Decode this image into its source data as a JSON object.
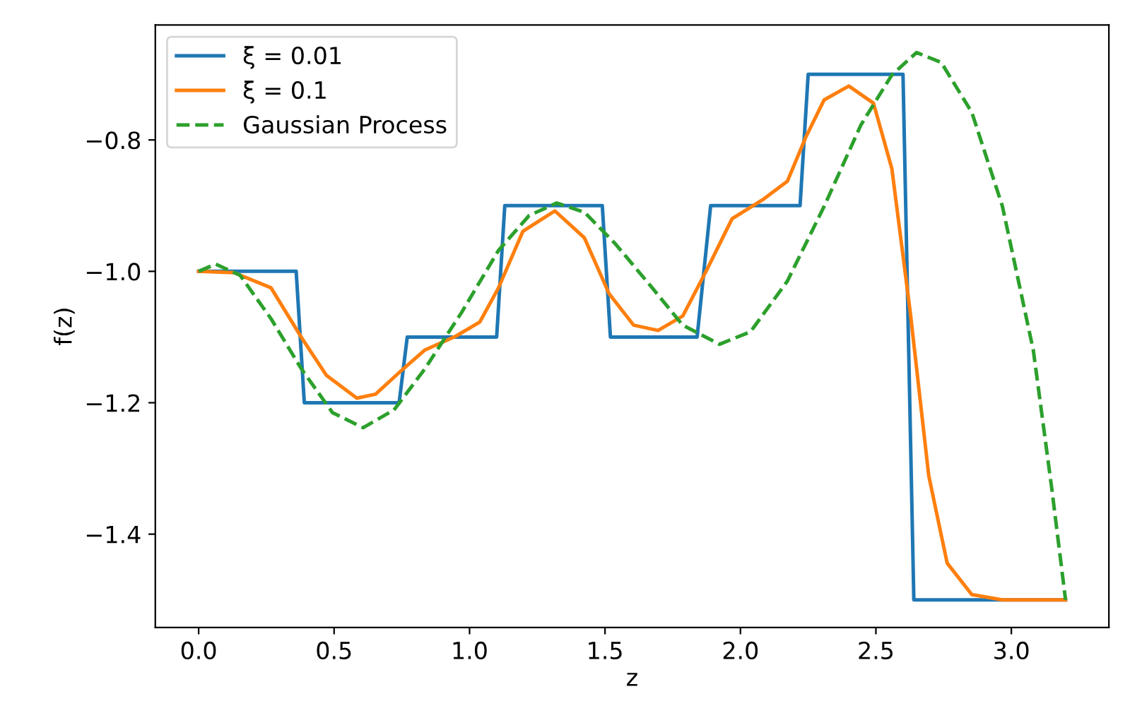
{
  "chart_data": {
    "type": "line",
    "xlabel": "z",
    "ylabel": "f(z)",
    "xlim": [
      -0.16,
      3.36
    ],
    "xticks": [
      {
        "value": 0.0,
        "label": "0.0"
      },
      {
        "value": 0.5,
        "label": "0.5"
      },
      {
        "value": 1.0,
        "label": "1.0"
      },
      {
        "value": 1.5,
        "label": "1.5"
      },
      {
        "value": 2.0,
        "label": "2.0"
      },
      {
        "value": 2.5,
        "label": "2.5"
      },
      {
        "value": 3.0,
        "label": "3.0"
      }
    ],
    "ylim": [
      -1.542,
      -0.625
    ],
    "yticks": [
      {
        "value": -1.4,
        "label": "−1.4"
      },
      {
        "value": -1.2,
        "label": "−1.2"
      },
      {
        "value": -1.0,
        "label": "−1.0"
      },
      {
        "value": -0.8,
        "label": "−0.8"
      }
    ],
    "grid": false,
    "legend": "top left",
    "series": [
      {
        "name": "ξ = 0.01",
        "color": "#1f77b4",
        "line_style": "solid",
        "x": [
          0,
          0.36,
          0.39,
          0.74,
          0.77,
          1.1,
          1.13,
          1.49,
          1.52,
          1.84,
          1.89,
          2.22,
          2.25,
          2.6,
          2.64,
          3.2
        ],
        "values": [
          -1.0,
          -1.0,
          -1.2,
          -1.2,
          -1.1,
          -1.1,
          -0.9,
          -0.9,
          -1.1,
          -1.1,
          -0.9,
          -0.9,
          -0.7,
          -0.7,
          -1.5,
          -1.5
        ]
      },
      {
        "name": "ξ = 0.1",
        "color": "#ff7f0e",
        "line_style": "solid",
        "x": [
          0,
          0.131,
          0.267,
          0.38,
          0.471,
          0.584,
          0.653,
          0.743,
          0.834,
          0.948,
          1.038,
          1.107,
          1.197,
          1.315,
          1.424,
          1.515,
          1.606,
          1.696,
          1.787,
          1.878,
          1.969,
          2.082,
          2.173,
          2.241,
          2.309,
          2.4,
          2.491,
          2.559,
          2.627,
          2.695,
          2.763,
          2.854,
          2.967,
          3.2
        ],
        "values": [
          -1.0,
          -1.002,
          -1.025,
          -1.101,
          -1.158,
          -1.193,
          -1.187,
          -1.153,
          -1.12,
          -1.099,
          -1.077,
          -1.025,
          -0.939,
          -0.908,
          -0.949,
          -1.034,
          -1.082,
          -1.09,
          -1.068,
          -0.996,
          -0.92,
          -0.891,
          -0.863,
          -0.796,
          -0.739,
          -0.718,
          -0.744,
          -0.844,
          -1.063,
          -1.311,
          -1.444,
          -1.492,
          -1.5,
          -1.5
        ]
      },
      {
        "name": "Gaussian Process",
        "color": "#2ca02c",
        "line_style": "dashed",
        "x": [
          0,
          0.063,
          0.153,
          0.267,
          0.38,
          0.494,
          0.607,
          0.721,
          0.834,
          0.97,
          1.107,
          1.22,
          1.322,
          1.424,
          1.538,
          1.674,
          1.787,
          1.923,
          2.037,
          2.173,
          2.309,
          2.445,
          2.559,
          2.65,
          2.741,
          2.854,
          2.967,
          3.081,
          3.149,
          3.2
        ],
        "values": [
          -1.0,
          -0.989,
          -1.006,
          -1.072,
          -1.149,
          -1.215,
          -1.238,
          -1.211,
          -1.149,
          -1.063,
          -0.968,
          -0.915,
          -0.896,
          -0.91,
          -0.958,
          -1.025,
          -1.082,
          -1.111,
          -1.092,
          -1.015,
          -0.901,
          -0.777,
          -0.701,
          -0.667,
          -0.682,
          -0.758,
          -0.901,
          -1.12,
          -1.33,
          -1.5
        ]
      }
    ]
  }
}
